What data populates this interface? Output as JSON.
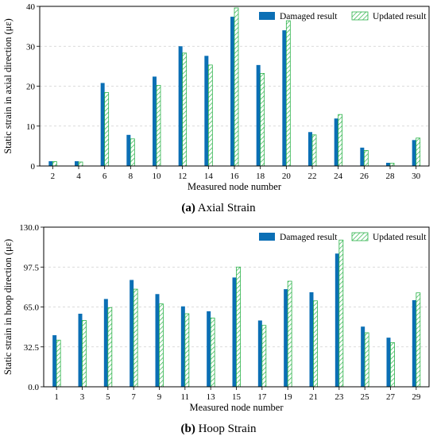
{
  "chart_data": [
    {
      "type": "bar",
      "caption_label": "(a)",
      "caption_text": "Axial Strain",
      "xlabel": "Measured node number",
      "ylabel": "Static strain in axial direction (με)",
      "categories": [
        "2",
        "4",
        "6",
        "8",
        "10",
        "12",
        "14",
        "16",
        "18",
        "20",
        "22",
        "24",
        "26",
        "28",
        "30"
      ],
      "ylim": [
        0,
        40
      ],
      "yticks": [
        "0",
        "10",
        "20",
        "30",
        "40"
      ],
      "ytick_values": [
        0,
        10,
        20,
        30,
        40
      ],
      "grid": true,
      "legend_position": "top-right",
      "series": [
        {
          "name": "Damaged result",
          "color": "#0b6fb5",
          "style": "solid",
          "values": [
            1.2,
            1.2,
            20.8,
            7.8,
            22.4,
            30.0,
            27.6,
            37.4,
            25.3,
            34.0,
            8.5,
            11.9,
            4.6,
            0.8,
            6.5
          ]
        },
        {
          "name": "Updated result",
          "color": "#2cb34a",
          "style": "hatched",
          "values": [
            1.1,
            1.0,
            18.4,
            6.8,
            20.2,
            28.3,
            25.3,
            39.6,
            23.2,
            36.4,
            7.8,
            12.9,
            3.9,
            0.7,
            7.0
          ]
        }
      ]
    },
    {
      "type": "bar",
      "caption_label": "(b)",
      "caption_text": "Hoop Strain",
      "xlabel": "Measured node number",
      "ylabel": "Static strain in hoop direction (με)",
      "categories": [
        "1",
        "3",
        "5",
        "7",
        "9",
        "11",
        "13",
        "15",
        "17",
        "19",
        "21",
        "23",
        "25",
        "27",
        "29"
      ],
      "ylim": [
        0,
        130
      ],
      "yticks": [
        "0.0",
        "32.5",
        "65.0",
        "97.5",
        "130.0"
      ],
      "ytick_values": [
        0,
        32.5,
        65.0,
        97.5,
        130.0
      ],
      "grid": true,
      "legend_position": "top-right",
      "series": [
        {
          "name": "Damaged result",
          "color": "#0b6fb5",
          "style": "solid",
          "values": [
            42.0,
            59.5,
            71.5,
            87.0,
            75.5,
            65.5,
            61.5,
            89.0,
            54.0,
            79.5,
            77.0,
            108.5,
            49.0,
            40.0,
            70.5
          ]
        },
        {
          "name": "Updated result",
          "color": "#2cb34a",
          "style": "hatched",
          "values": [
            38.0,
            54.0,
            64.5,
            79.5,
            67.5,
            59.5,
            56.0,
            97.5,
            50.0,
            86.0,
            70.0,
            119.5,
            44.0,
            36.0,
            76.5
          ]
        }
      ]
    }
  ]
}
